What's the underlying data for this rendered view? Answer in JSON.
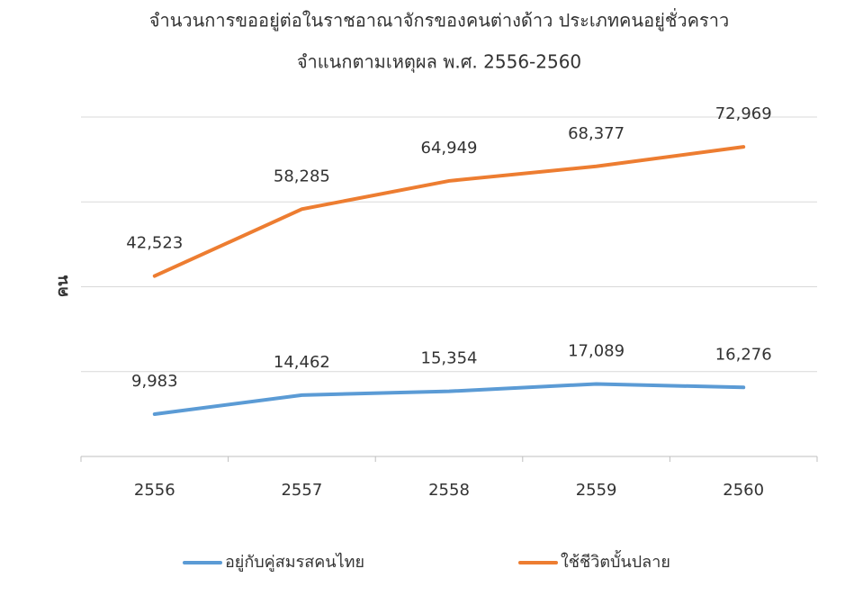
{
  "chart_data": {
    "type": "line",
    "title": "จำนวนการขออยู่ต่อในราชอาณาจักรของคนต่างด้าว ประเภทคนอยู่ชั่วคราว",
    "subtitle": "จำแนกตามเหตุผล พ.ศ. 2556-2560",
    "y_label": "คน",
    "categories": [
      "2556",
      "2557",
      "2558",
      "2559",
      "2560"
    ],
    "series": [
      {
        "name": "อยู่กับคู่สมรสคนไทย",
        "color": "#5b9bd5",
        "values": [
          9983,
          14462,
          15354,
          17089,
          16276
        ],
        "value_labels": [
          "9,983",
          "14,462",
          "15,354",
          "17,089",
          "16,276"
        ]
      },
      {
        "name": "ใช้ชีวิตบั้นปลาย",
        "color": "#ed7d31",
        "values": [
          42523,
          58285,
          64949,
          68377,
          72969
        ],
        "value_labels": [
          "42,523",
          "58,285",
          "64,949",
          "68,377",
          "72,969"
        ]
      }
    ],
    "ylim": [
      0,
      80000
    ],
    "yticks": [
      0,
      20000,
      40000,
      60000,
      80000
    ],
    "grid": true,
    "legend": "bottom"
  }
}
